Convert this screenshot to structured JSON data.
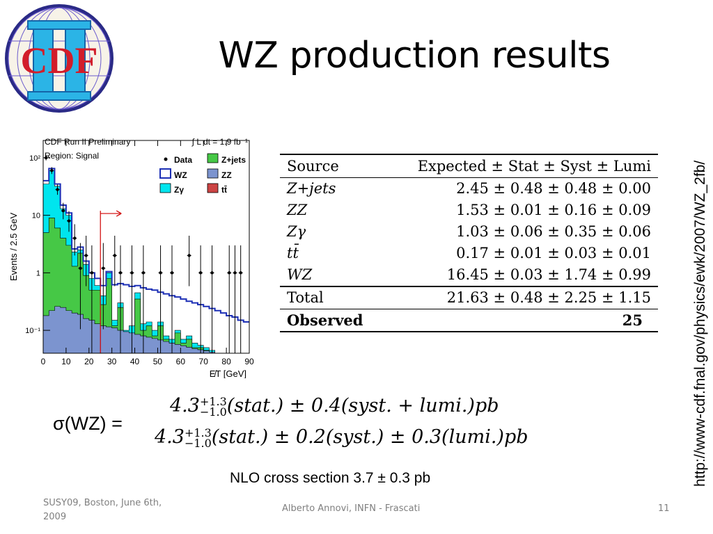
{
  "slide": {
    "title": "WZ production results",
    "url": "http://www-cdf.fnal.gov/physics/ewk/2007/WZ_2fb/",
    "footer_left": "SUSY09, Boston, June 6th, 2009",
    "footer_center": "Alberto Annovi, INFN - Frascati",
    "page_number": "11",
    "logo_text": "CDF",
    "sigma_label": "σ(WZ) =",
    "formula_1": "4.3+1.3−1.0(stat.) ± 0.4(syst. + lumi.)pb",
    "formula_2": "4.3+1.3−1.0(stat.) ± 0.2(syst.) ± 0.3(lumi.)pb",
    "nlo": "NLO cross section 3.7 ± 0.3 pb"
  },
  "table": {
    "header": [
      "Source",
      "Expected ± Stat ± Syst ± Lumi"
    ],
    "rows": [
      {
        "source": "Z+jets",
        "value": "2.45 ± 0.48 ± 0.48 ± 0.00"
      },
      {
        "source": "ZZ",
        "value": "1.53 ± 0.01 ± 0.16 ± 0.09"
      },
      {
        "source": "Zγ",
        "value": "1.03 ± 0.06 ± 0.35 ± 0.06"
      },
      {
        "source": "tt̄",
        "value": "0.17 ± 0.01 ± 0.03 ± 0.01"
      },
      {
        "source": "WZ",
        "value": "16.45 ± 0.03 ± 1.74 ± 0.99"
      }
    ],
    "total": {
      "label": "Total",
      "value": "21.63 ± 0.48 ± 2.25 ± 1.15"
    },
    "observed": {
      "label": "Observed",
      "value": "25"
    }
  },
  "chart_data": {
    "type": "area",
    "title": "CDF Run II Preliminary",
    "region": "Region: Signal",
    "lumi": "∫ L dt = 1.9 fb⁻¹",
    "xlabel": "E̸T [GeV]",
    "ylabel": "Events / 2.5 GeV",
    "xlim": [
      0,
      90
    ],
    "ylim": [
      0.04,
      200
    ],
    "y_scale": "log",
    "x_ticks": [
      "0",
      "10",
      "20",
      "30",
      "40",
      "50",
      "60",
      "70",
      "80",
      "90"
    ],
    "y_ticks": [
      "10²",
      "10",
      "1",
      "10⁻¹"
    ],
    "bin_width": 2.5,
    "cut": 25,
    "legend": [
      "Data",
      "WZ",
      "Zγ",
      "Z+jets",
      "ZZ",
      "tt̄"
    ],
    "colors": {
      "WZ": "#1c2fb5",
      "Zgamma": "#00e5ee",
      "Zjets": "#46c846",
      "ZZ": "#7c94cf",
      "data": "#000000",
      "cut": "#d00000"
    },
    "series": [
      {
        "name": "ZZ",
        "values": [
          0.18,
          0.22,
          0.26,
          0.25,
          0.22,
          0.2,
          0.19,
          0.16,
          0.15,
          0.13,
          0.12,
          0.115,
          0.11,
          0.1,
          0.095,
          0.09,
          0.085,
          0.08,
          0.076,
          0.072,
          0.068,
          0.064,
          0.06,
          0.057,
          0.054,
          0.051,
          0.048,
          0.046,
          0.044,
          0.042,
          0.04,
          0.04,
          0.04,
          0.04,
          0.04,
          0.04
        ]
      },
      {
        "name": "Z+jets",
        "values": [
          5.0,
          9.0,
          6.0,
          4.0,
          3.0,
          1.3,
          2.2,
          0.9,
          0.5,
          0.5,
          0.28,
          0.8,
          0.12,
          0.25,
          0.09,
          0.09,
          0.35,
          0.1,
          0.12,
          0.08,
          0.12,
          0.07,
          0.06,
          0.09,
          0.06,
          0.07,
          0.05,
          0.05,
          0.045,
          0.042,
          0.04,
          0.04,
          0.04,
          0.04,
          0.04,
          0.04
        ]
      },
      {
        "name": "Zγ",
        "values": [
          35,
          60,
          32,
          13,
          10,
          2.3,
          2.5,
          1.4,
          0.8,
          0.6,
          0.4,
          1.0,
          0.15,
          0.3,
          0.1,
          0.12,
          0.45,
          0.13,
          0.14,
          0.1,
          0.14,
          0.08,
          0.07,
          0.1,
          0.07,
          0.08,
          0.06,
          0.055,
          0.05,
          0.045,
          0.04,
          0.04,
          0.04,
          0.04,
          0.04,
          0.04
        ]
      },
      {
        "name": "WZ",
        "values": [
          40,
          65,
          35,
          15,
          11,
          2.6,
          2.8,
          1.6,
          1.0,
          0.8,
          0.6,
          1.05,
          0.62,
          0.65,
          0.62,
          0.58,
          0.6,
          0.55,
          0.52,
          0.5,
          0.46,
          0.43,
          0.4,
          0.38,
          0.35,
          0.32,
          0.3,
          0.28,
          0.26,
          0.24,
          0.22,
          0.2,
          0.18,
          0.17,
          0.15,
          0.14
        ]
      },
      {
        "name": "Data",
        "x": [
          1.25,
          3.75,
          6.25,
          8.75,
          11.25,
          13.75,
          16.25,
          18.75,
          21.25,
          26.25,
          31.25,
          33.75,
          38.75,
          43.75,
          51.25,
          56.25,
          63.75,
          68.75,
          73.75,
          81.25,
          83.75,
          86.25
        ],
        "y": [
          100,
          60,
          28,
          12,
          8,
          4,
          1.2,
          2,
          1,
          1.2,
          2,
          1,
          1,
          1,
          1,
          1,
          2,
          1,
          1,
          1,
          1,
          1
        ]
      }
    ]
  }
}
